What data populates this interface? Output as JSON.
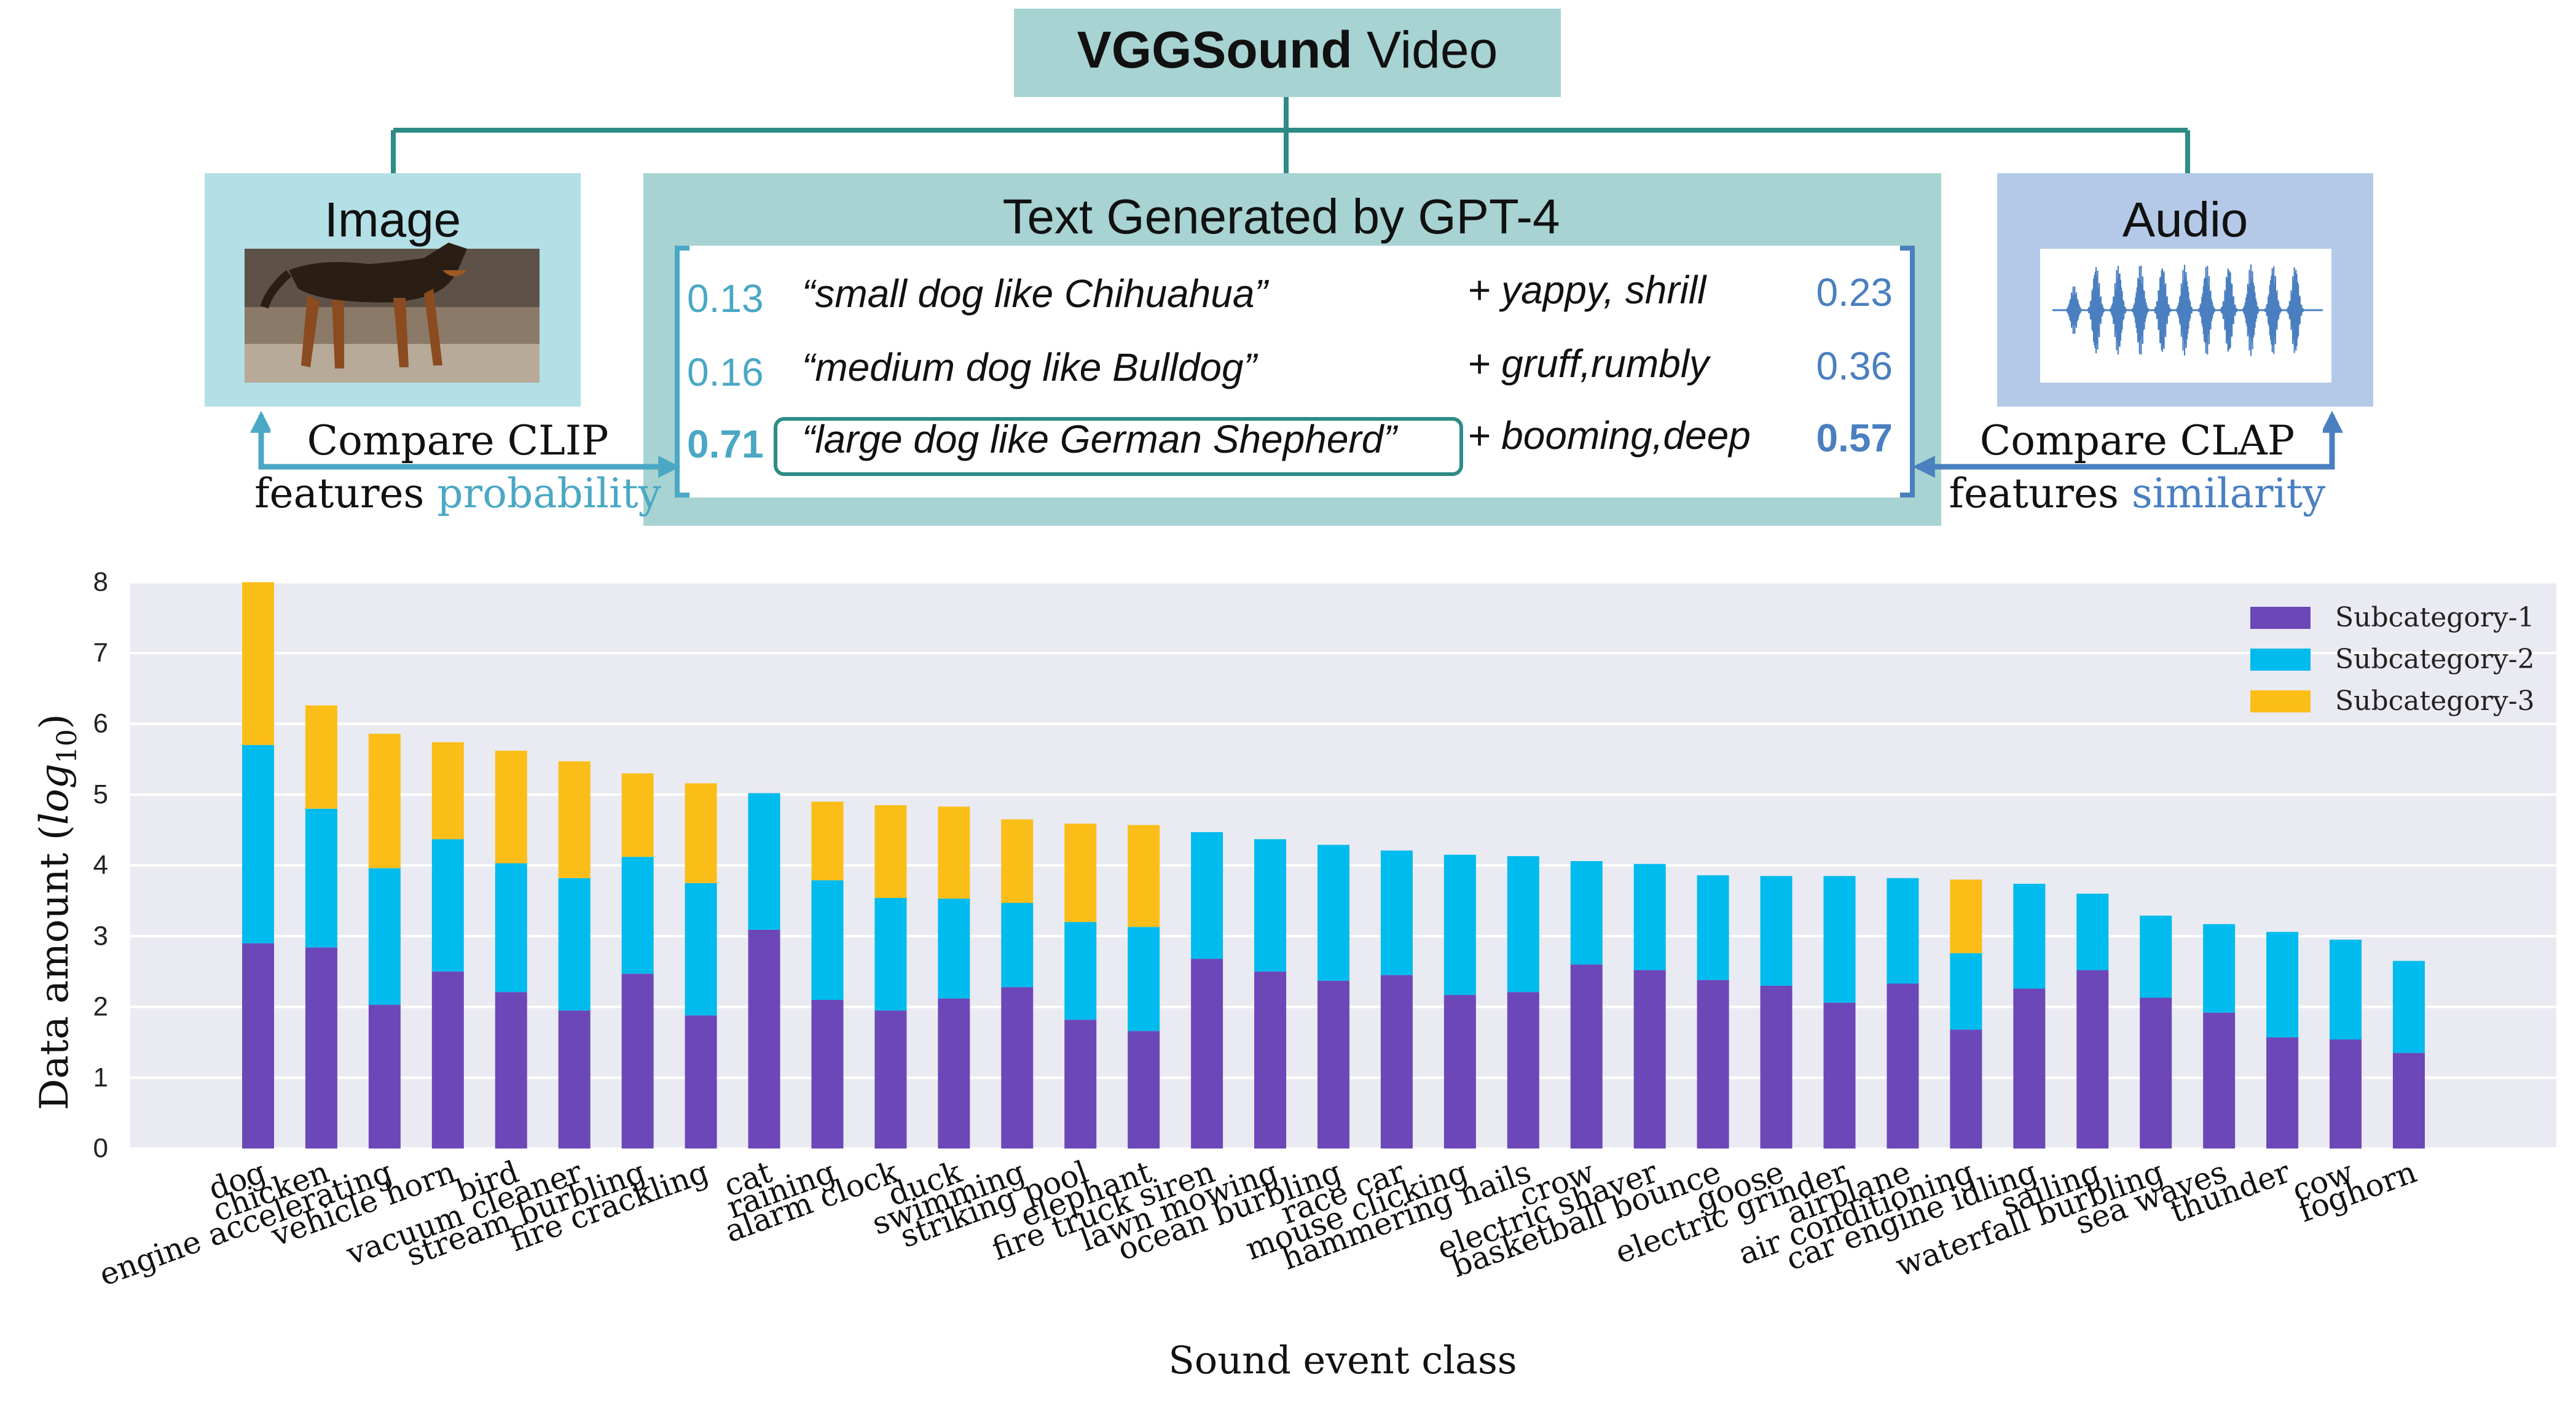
{
  "diagram": {
    "title_bold": "VGGSound",
    "title_rest": " Video",
    "image_label": "Image",
    "text_box_title": "Text Generated by GPT-4",
    "audio_label": "Audio",
    "rows": [
      {
        "clip_prob": "0.13",
        "desc": "“small dog like Chihuahua”",
        "adj": "+ yappy, shrill",
        "clap_sim": "0.23",
        "highlight": false
      },
      {
        "clip_prob": "0.16",
        "desc": "“medium dog like Bulldog”",
        "adj": "+ gruff,rumbly",
        "clap_sim": "0.36",
        "highlight": false
      },
      {
        "clip_prob": "0.71",
        "desc": "“large dog like German Shepherd”",
        "adj": "+ booming,deep",
        "clap_sim": "0.57",
        "highlight": true
      }
    ],
    "left_caption_line1": "Compare CLIP",
    "left_caption_line2_a": "features ",
    "left_caption_line2_b": "probability",
    "right_caption_line1": "Compare CLAP",
    "right_caption_line2_a": "features ",
    "right_caption_line2_b": "similarity",
    "colors": {
      "video_box": "#a7d3d2",
      "text_box": "#a7d3d2",
      "image_box": "#b3dfe6",
      "audio_box": "#b3c9e7",
      "connector": "#2e8b85",
      "left_accent": "#4aa8c5",
      "right_accent": "#4a7fc0"
    }
  },
  "chart_data": {
    "type": "bar",
    "stacked": true,
    "xlabel": "Sound event class",
    "ylabel_prefix": "Data amount (",
    "ylabel_log": "log",
    "ylabel_sub": "10",
    "ylabel_suffix": ")",
    "ylim": [
      0,
      8
    ],
    "yticks": [
      "0",
      "1",
      "2",
      "3",
      "4",
      "5",
      "6",
      "7",
      "8"
    ],
    "grid": true,
    "legend_position": "top-right",
    "categories": [
      "dog",
      "chicken",
      "engine accelerating",
      "vehicle horn",
      "bird",
      "vacuum cleaner",
      "stream burbling",
      "fire crackling",
      "cat",
      "raining",
      "alarm clock",
      "duck",
      "swimming",
      "striking pool",
      "elephant",
      "fire truck siren",
      "lawn mowing",
      "ocean burbling",
      "race car",
      "mouse clicking",
      "hammering nails",
      "crow",
      "electric shaver",
      "basketball bounce",
      "goose",
      "electric grinder",
      "airplane",
      "air conditioning",
      "car engine idling",
      "sailing",
      "waterfall burbling",
      "sea waves",
      "thunder",
      "cow",
      "foghorn"
    ],
    "series": [
      {
        "name": "Subcategory-1",
        "color": "#6c47b8",
        "values": [
          2.9,
          2.84,
          2.03,
          2.5,
          2.21,
          1.95,
          2.47,
          1.88,
          3.09,
          2.1,
          1.95,
          2.12,
          2.28,
          1.82,
          1.66,
          2.68,
          2.5,
          2.37,
          2.45,
          2.17,
          2.21,
          2.6,
          2.52,
          2.38,
          2.3,
          2.06,
          2.33,
          1.68,
          2.26,
          2.52,
          2.13,
          1.92,
          1.57,
          1.54,
          1.35
        ]
      },
      {
        "name": "Subcategory-2",
        "color": "#00bbee",
        "values": [
          2.8,
          1.96,
          1.93,
          1.87,
          1.82,
          1.87,
          1.65,
          1.87,
          1.93,
          1.69,
          1.59,
          1.41,
          1.19,
          1.38,
          1.47,
          1.79,
          1.87,
          1.92,
          1.76,
          1.98,
          1.92,
          1.46,
          1.5,
          1.48,
          1.55,
          1.79,
          1.49,
          1.08,
          1.48,
          1.08,
          1.16,
          1.25,
          1.49,
          1.41,
          1.3
        ]
      },
      {
        "name": "Subcategory-3",
        "color": "#fbbe19",
        "values": [
          2.3,
          1.46,
          1.9,
          1.37,
          1.59,
          1.65,
          1.18,
          1.41,
          0,
          1.11,
          1.31,
          1.3,
          1.18,
          1.39,
          1.44,
          0,
          0,
          0,
          0,
          0,
          0,
          0,
          0,
          0,
          0,
          0,
          0,
          1.04,
          0,
          0,
          0,
          0,
          0,
          0,
          0
        ]
      }
    ]
  }
}
